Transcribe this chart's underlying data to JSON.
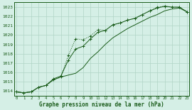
{
  "title": "Graphe pression niveau de la mer (hPa)",
  "bg_color": "#d5efe6",
  "grid_color": "#b0d5c5",
  "line_color": "#1a5c1a",
  "x_ticks": [
    0,
    1,
    2,
    3,
    4,
    5,
    6,
    7,
    8,
    9,
    10,
    11,
    12,
    13,
    14,
    15,
    16,
    17,
    18,
    19,
    20,
    21,
    22,
    23
  ],
  "ylim": [
    1013.5,
    1023.5
  ],
  "yticks": [
    1014,
    1015,
    1016,
    1017,
    1018,
    1019,
    1020,
    1021,
    1022,
    1023
  ],
  "series1_x": [
    0,
    1,
    2,
    3,
    4,
    5,
    6,
    7,
    8,
    9,
    10,
    11,
    12,
    13,
    14,
    15,
    16,
    17,
    18,
    19,
    20,
    21,
    22,
    23
  ],
  "series1_y": [
    1013.9,
    1013.8,
    1013.9,
    1014.4,
    1014.6,
    1015.2,
    1015.5,
    1017.8,
    1019.6,
    1019.5,
    1019.9,
    1020.6,
    1020.5,
    1021.1,
    1021.3,
    1021.6,
    1021.8,
    1022.2,
    1022.6,
    1023.0,
    1023.1,
    1023.0,
    1023.0,
    1022.5
  ],
  "series2_x": [
    0,
    1,
    2,
    3,
    4,
    5,
    6,
    7,
    8,
    9,
    10,
    11,
    12,
    13,
    14,
    15,
    16,
    17,
    18,
    19,
    20,
    21,
    22,
    23
  ],
  "series2_y": [
    1013.9,
    1013.8,
    1013.9,
    1014.4,
    1014.6,
    1015.2,
    1015.5,
    1015.7,
    1015.9,
    1016.5,
    1017.5,
    1018.2,
    1019.0,
    1019.7,
    1020.2,
    1020.7,
    1021.1,
    1021.5,
    1021.9,
    1022.2,
    1022.6,
    1022.8,
    1022.9,
    1022.5
  ],
  "series3_x": [
    0,
    1,
    2,
    3,
    4,
    5,
    6,
    7,
    8,
    9,
    10,
    11,
    12,
    13,
    14,
    15,
    16,
    17,
    18,
    19,
    20,
    21,
    22,
    23
  ],
  "series3_y": [
    1013.9,
    1013.8,
    1013.9,
    1014.4,
    1014.6,
    1015.3,
    1015.6,
    1017.3,
    1018.5,
    1018.8,
    1019.6,
    1020.3,
    1020.5,
    1021.1,
    1021.3,
    1021.6,
    1021.8,
    1022.2,
    1022.6,
    1022.9,
    1023.1,
    1023.0,
    1023.0,
    1022.5
  ]
}
